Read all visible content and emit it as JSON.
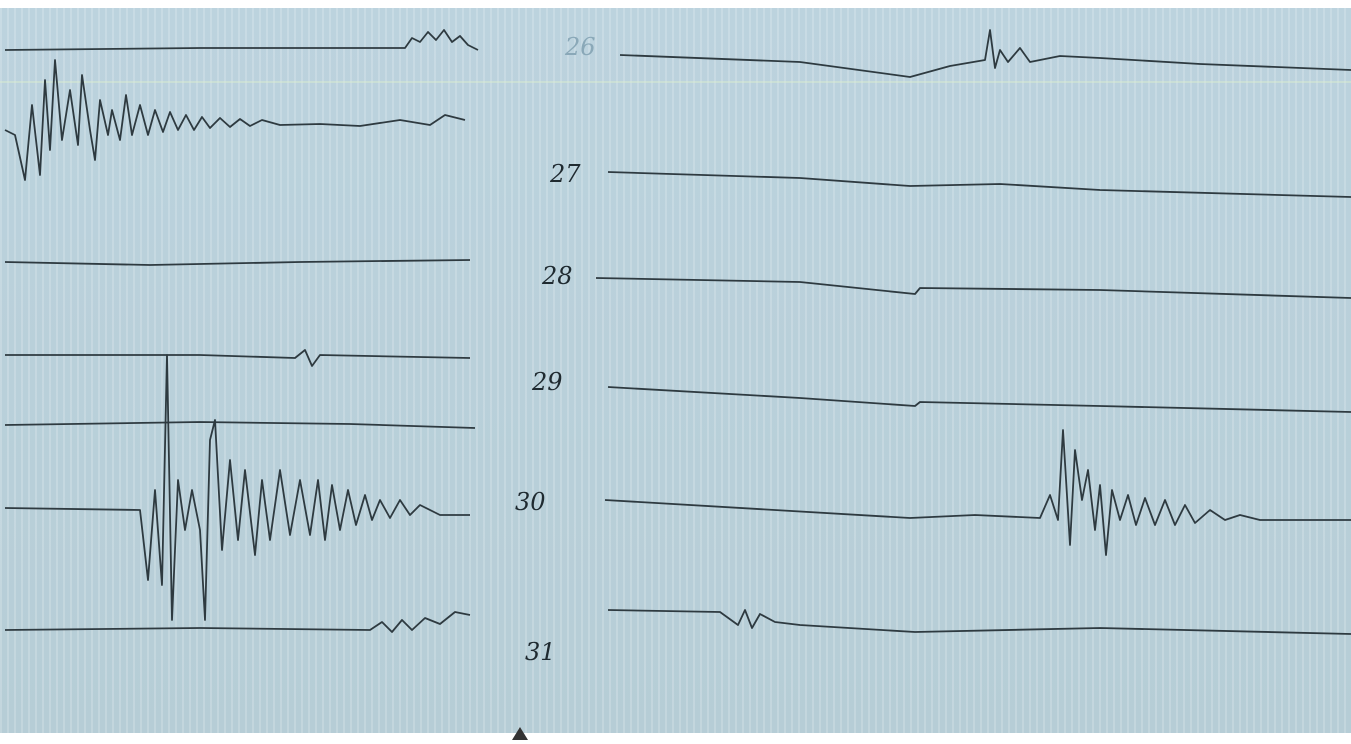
{
  "labels": [
    "26",
    "27",
    "28",
    "29",
    "30",
    "31"
  ]
}
